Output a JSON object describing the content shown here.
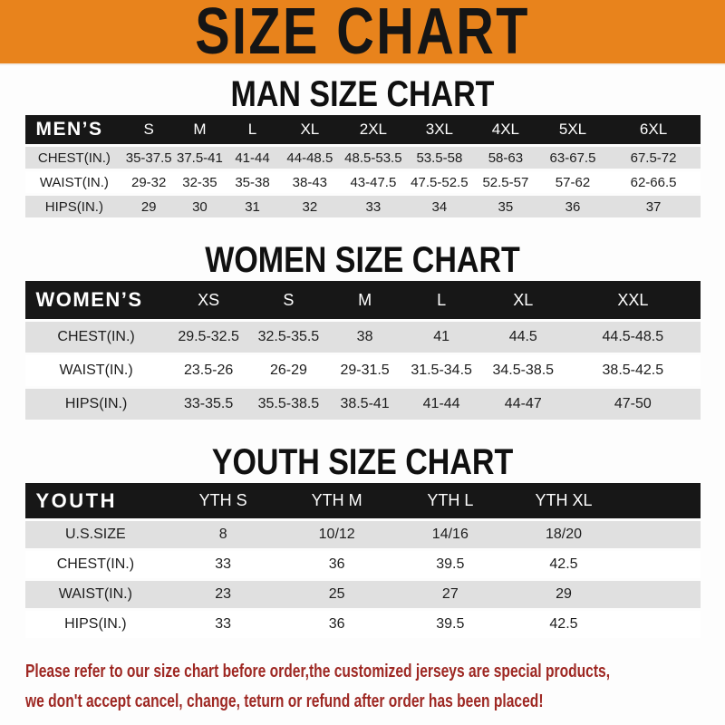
{
  "banner": {
    "title": "SIZE CHART"
  },
  "colors": {
    "banner_bg": "#E8831C",
    "table_header_bg": "#171717",
    "row_alt_bg": "#E0E0E0",
    "footer_text": "#9E2823"
  },
  "sections": [
    {
      "id": "men",
      "heading": "MAN SIZE CHART",
      "header_label": "MEN’S",
      "columns": [
        "S",
        "M",
        "L",
        "XL",
        "2XL",
        "3XL",
        "4XL",
        "5XL",
        "6XL"
      ],
      "rows": [
        {
          "label": "CHEST(IN.)",
          "values": [
            "35-37.5",
            "37.5-41",
            "41-44",
            "44-48.5",
            "48.5-53.5",
            "53.5-58",
            "58-63",
            "63-67.5",
            "67.5-72"
          ]
        },
        {
          "label": "WAIST(IN.)",
          "values": [
            "29-32",
            "32-35",
            "35-38",
            "38-43",
            "43-47.5",
            "47.5-52.5",
            "52.5-57",
            "57-62",
            "62-66.5"
          ]
        },
        {
          "label": "HIPS(IN.)",
          "values": [
            "29",
            "30",
            "31",
            "32",
            "33",
            "34",
            "35",
            "36",
            "37"
          ]
        }
      ]
    },
    {
      "id": "women",
      "heading": "WOMEN SIZE CHART",
      "header_label": "WOMEN’S",
      "columns": [
        "XS",
        "S",
        "M",
        "L",
        "XL",
        "XXL"
      ],
      "rows": [
        {
          "label": "CHEST(IN.)",
          "values": [
            "29.5-32.5",
            "32.5-35.5",
            "38",
            "41",
            "44.5",
            "44.5-48.5"
          ]
        },
        {
          "label": "WAIST(IN.)",
          "values": [
            "23.5-26",
            "26-29",
            "29-31.5",
            "31.5-34.5",
            "34.5-38.5",
            "38.5-42.5"
          ]
        },
        {
          "label": "HIPS(IN.)",
          "values": [
            "33-35.5",
            "35.5-38.5",
            "38.5-41",
            "41-44",
            "44-47",
            "47-50"
          ]
        }
      ]
    },
    {
      "id": "youth",
      "heading": "YOUTH SIZE CHART",
      "header_label": "YOUTH",
      "columns": [
        "YTH S",
        "YTH M",
        "YTH L",
        "YTH XL"
      ],
      "rows": [
        {
          "label": "U.S.SIZE",
          "values": [
            "8",
            "10/12",
            "14/16",
            "18/20"
          ]
        },
        {
          "label": "CHEST(IN.)",
          "values": [
            "33",
            "36",
            "39.5",
            "42.5"
          ]
        },
        {
          "label": "WAIST(IN.)",
          "values": [
            "23",
            "25",
            "27",
            "29"
          ]
        },
        {
          "label": "HIPS(IN.)",
          "values": [
            "33",
            "36",
            "39.5",
            "42.5"
          ]
        }
      ]
    }
  ],
  "footer": {
    "line1": "Please refer to our size chart before order,the customized jerseys are special products,",
    "line2": "we don't accept cancel, change, teturn or refund after order has been placed!"
  }
}
